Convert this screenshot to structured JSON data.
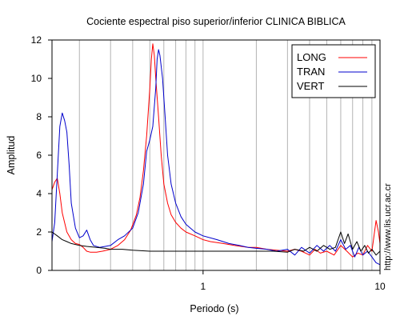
{
  "chart_data": {
    "type": "line",
    "title": "Cociente espectral piso superior/inferior  CLINICA BIBLICA",
    "xlabel": "Periodo (s)",
    "ylabel": "Amplitud",
    "x_scale": "log",
    "xlim": [
      0.14,
      10
    ],
    "ylim": [
      0,
      12
    ],
    "x_tick_labels": [
      "1",
      "10"
    ],
    "x_tick_values": [
      1,
      10
    ],
    "y_tick_values": [
      0,
      2,
      4,
      6,
      8,
      10,
      12
    ],
    "y_tick_labels": [
      "0",
      "2",
      "4",
      "6",
      "8",
      "10",
      "12"
    ],
    "grid": "vertical",
    "legend_position": "top-right",
    "credit": "http://www.lis.ucr.ac.cr",
    "colors": {
      "LONG": "#ff0000",
      "TRAN": "#0000cc",
      "VERT": "#000000"
    },
    "series": [
      {
        "name": "LONG",
        "color": "#ff0000",
        "points": [
          [
            0.14,
            4.2
          ],
          [
            0.145,
            4.6
          ],
          [
            0.15,
            4.8
          ],
          [
            0.155,
            4.0
          ],
          [
            0.16,
            3.0
          ],
          [
            0.17,
            2.0
          ],
          [
            0.18,
            1.6
          ],
          [
            0.19,
            1.4
          ],
          [
            0.2,
            1.35
          ],
          [
            0.21,
            1.2
          ],
          [
            0.22,
            1.0
          ],
          [
            0.23,
            0.95
          ],
          [
            0.24,
            0.95
          ],
          [
            0.25,
            0.95
          ],
          [
            0.27,
            1.0
          ],
          [
            0.3,
            1.1
          ],
          [
            0.33,
            1.3
          ],
          [
            0.36,
            1.6
          ],
          [
            0.39,
            2.1
          ],
          [
            0.42,
            2.9
          ],
          [
            0.44,
            3.8
          ],
          [
            0.46,
            5.2
          ],
          [
            0.48,
            7.0
          ],
          [
            0.5,
            9.5
          ],
          [
            0.51,
            11.0
          ],
          [
            0.52,
            11.8
          ],
          [
            0.53,
            11.2
          ],
          [
            0.54,
            10.0
          ],
          [
            0.56,
            8.0
          ],
          [
            0.58,
            6.0
          ],
          [
            0.6,
            4.5
          ],
          [
            0.63,
            3.5
          ],
          [
            0.66,
            2.9
          ],
          [
            0.7,
            2.5
          ],
          [
            0.75,
            2.2
          ],
          [
            0.8,
            2.0
          ],
          [
            0.9,
            1.8
          ],
          [
            1.0,
            1.6
          ],
          [
            1.1,
            1.5
          ],
          [
            1.3,
            1.4
          ],
          [
            1.5,
            1.3
          ],
          [
            1.8,
            1.2
          ],
          [
            2.0,
            1.2
          ],
          [
            2.3,
            1.1
          ],
          [
            2.6,
            1.05
          ],
          [
            3.0,
            1.0
          ],
          [
            3.3,
            1.1
          ],
          [
            3.6,
            1.0
          ],
          [
            4.0,
            0.8
          ],
          [
            4.3,
            1.1
          ],
          [
            4.6,
            0.9
          ],
          [
            5.0,
            1.0
          ],
          [
            5.5,
            0.8
          ],
          [
            6.0,
            1.3
          ],
          [
            6.5,
            1.0
          ],
          [
            7.0,
            0.7
          ],
          [
            7.5,
            0.9
          ],
          [
            8.0,
            0.8
          ],
          [
            8.5,
            1.3
          ],
          [
            9.0,
            1.0
          ],
          [
            9.5,
            2.6
          ],
          [
            9.8,
            2.0
          ],
          [
            10.0,
            1.4
          ]
        ]
      },
      {
        "name": "TRAN",
        "color": "#0000cc",
        "points": [
          [
            0.14,
            1.5
          ],
          [
            0.145,
            2.5
          ],
          [
            0.15,
            5.0
          ],
          [
            0.155,
            7.5
          ],
          [
            0.16,
            8.2
          ],
          [
            0.165,
            7.8
          ],
          [
            0.17,
            7.2
          ],
          [
            0.175,
            5.5
          ],
          [
            0.18,
            3.5
          ],
          [
            0.19,
            2.2
          ],
          [
            0.2,
            1.7
          ],
          [
            0.21,
            1.8
          ],
          [
            0.22,
            2.1
          ],
          [
            0.23,
            1.6
          ],
          [
            0.24,
            1.3
          ],
          [
            0.26,
            1.2
          ],
          [
            0.28,
            1.25
          ],
          [
            0.3,
            1.3
          ],
          [
            0.33,
            1.6
          ],
          [
            0.36,
            1.8
          ],
          [
            0.4,
            2.2
          ],
          [
            0.43,
            3.0
          ],
          [
            0.46,
            4.5
          ],
          [
            0.48,
            6.2
          ],
          [
            0.5,
            6.8
          ],
          [
            0.52,
            7.5
          ],
          [
            0.54,
            9.5
          ],
          [
            0.55,
            11.0
          ],
          [
            0.56,
            11.5
          ],
          [
            0.57,
            11.2
          ],
          [
            0.59,
            10.0
          ],
          [
            0.61,
            8.0
          ],
          [
            0.63,
            6.0
          ],
          [
            0.66,
            4.5
          ],
          [
            0.7,
            3.5
          ],
          [
            0.75,
            2.8
          ],
          [
            0.8,
            2.4
          ],
          [
            0.9,
            2.0
          ],
          [
            1.0,
            1.8
          ],
          [
            1.2,
            1.6
          ],
          [
            1.4,
            1.4
          ],
          [
            1.6,
            1.3
          ],
          [
            1.8,
            1.2
          ],
          [
            2.0,
            1.15
          ],
          [
            2.3,
            1.1
          ],
          [
            2.6,
            1.0
          ],
          [
            3.0,
            1.1
          ],
          [
            3.3,
            0.8
          ],
          [
            3.6,
            1.2
          ],
          [
            4.0,
            0.9
          ],
          [
            4.4,
            1.3
          ],
          [
            4.8,
            1.0
          ],
          [
            5.2,
            1.3
          ],
          [
            5.6,
            1.0
          ],
          [
            6.0,
            1.6
          ],
          [
            6.4,
            1.1
          ],
          [
            6.8,
            1.3
          ],
          [
            7.2,
            0.7
          ],
          [
            7.6,
            1.2
          ],
          [
            8.0,
            0.8
          ],
          [
            8.5,
            1.0
          ],
          [
            9.0,
            0.7
          ],
          [
            9.5,
            0.4
          ],
          [
            10.0,
            0.3
          ]
        ]
      },
      {
        "name": "VERT",
        "color": "#000000",
        "points": [
          [
            0.14,
            2.0
          ],
          [
            0.15,
            1.8
          ],
          [
            0.16,
            1.6
          ],
          [
            0.17,
            1.5
          ],
          [
            0.18,
            1.4
          ],
          [
            0.2,
            1.3
          ],
          [
            0.22,
            1.25
          ],
          [
            0.25,
            1.2
          ],
          [
            0.28,
            1.15
          ],
          [
            0.3,
            1.1
          ],
          [
            0.35,
            1.1
          ],
          [
            0.4,
            1.05
          ],
          [
            0.5,
            1.0
          ],
          [
            0.6,
            1.0
          ],
          [
            0.7,
            1.0
          ],
          [
            0.8,
            1.0
          ],
          [
            1.0,
            1.0
          ],
          [
            1.3,
            1.0
          ],
          [
            1.6,
            1.0
          ],
          [
            2.0,
            1.0
          ],
          [
            2.5,
            1.0
          ],
          [
            3.0,
            0.95
          ],
          [
            3.3,
            1.1
          ],
          [
            3.7,
            1.0
          ],
          [
            4.0,
            1.2
          ],
          [
            4.4,
            1.0
          ],
          [
            4.8,
            1.3
          ],
          [
            5.2,
            1.1
          ],
          [
            5.6,
            1.2
          ],
          [
            6.0,
            2.0
          ],
          [
            6.3,
            1.4
          ],
          [
            6.6,
            1.9
          ],
          [
            7.0,
            1.1
          ],
          [
            7.4,
            1.5
          ],
          [
            7.8,
            1.0
          ],
          [
            8.2,
            1.3
          ],
          [
            8.6,
            0.9
          ],
          [
            9.0,
            1.1
          ],
          [
            9.5,
            0.8
          ],
          [
            10.0,
            1.0
          ]
        ]
      }
    ]
  }
}
